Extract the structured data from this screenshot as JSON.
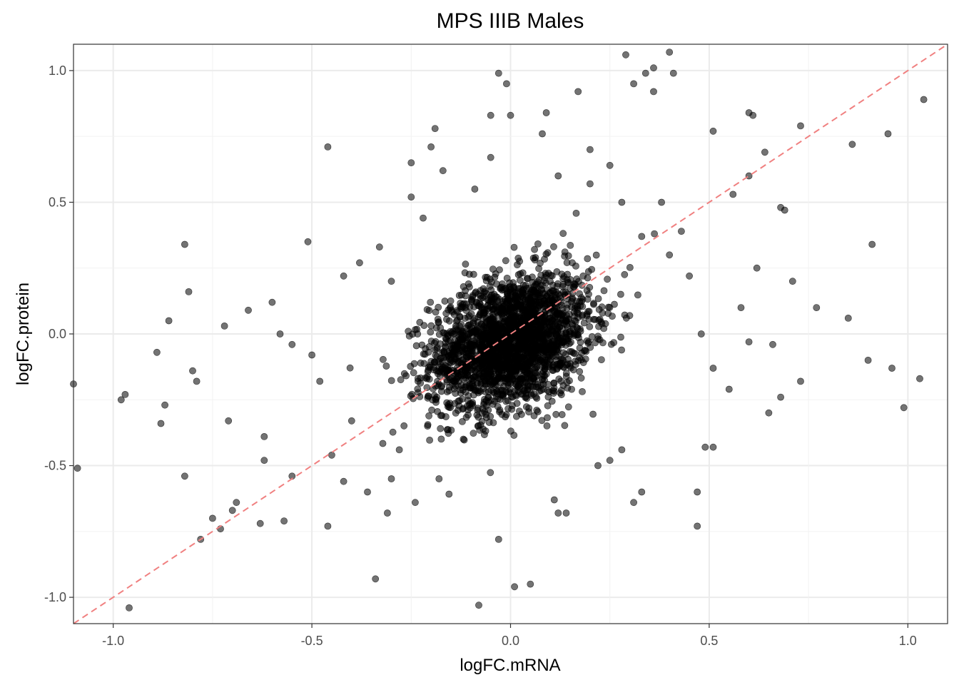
{
  "chart_data": {
    "type": "scatter",
    "title": "MPS IIIB Males",
    "xlabel": "logFC.mRNA",
    "ylabel": "logFC.protein",
    "xlim": [
      -1.1,
      1.1
    ],
    "ylim": [
      -1.1,
      1.1
    ],
    "xticks": [
      -1.0,
      -0.5,
      0.0,
      0.5,
      1.0
    ],
    "xtick_labels": [
      "-1.0",
      "-0.5",
      "0.0",
      "0.5",
      "1.0"
    ],
    "yticks": [
      -1.0,
      -0.5,
      0.0,
      0.5,
      1.0
    ],
    "ytick_labels": [
      "-1.0",
      "-0.5",
      "0.0",
      "0.5",
      "1.0"
    ],
    "grid": true,
    "legend": "none",
    "reference_line": {
      "slope": 1,
      "intercept": 0,
      "style": "dashed",
      "color": "#f08080"
    },
    "point_color": "#000000",
    "point_opacity": 0.55,
    "core_cluster": {
      "center": [
        0.0,
        -0.03
      ],
      "sd": [
        0.1,
        0.13
      ],
      "n": 2400,
      "seed": 12345
    },
    "outliers": [
      [
        0.29,
        1.06
      ],
      [
        0.4,
        1.07
      ],
      [
        0.36,
        1.01
      ],
      [
        0.41,
        0.99
      ],
      [
        0.34,
        0.99
      ],
      [
        -0.03,
        0.99
      ],
      [
        -0.01,
        0.95
      ],
      [
        0.31,
        0.95
      ],
      [
        0.36,
        0.92
      ],
      [
        0.17,
        0.92
      ],
      [
        1.04,
        0.89
      ],
      [
        0.09,
        0.84
      ],
      [
        0.6,
        0.84
      ],
      [
        0.61,
        0.83
      ],
      [
        -0.05,
        0.83
      ],
      [
        0.0,
        0.83
      ],
      [
        0.73,
        0.79
      ],
      [
        -0.19,
        0.78
      ],
      [
        0.51,
        0.77
      ],
      [
        0.08,
        0.76
      ],
      [
        0.95,
        0.76
      ],
      [
        0.86,
        0.72
      ],
      [
        -0.46,
        0.71
      ],
      [
        -0.2,
        0.71
      ],
      [
        0.2,
        0.7
      ],
      [
        0.64,
        0.69
      ],
      [
        -0.25,
        0.65
      ],
      [
        0.6,
        0.6
      ],
      [
        -0.17,
        0.62
      ],
      [
        0.56,
        0.53
      ],
      [
        -0.25,
        0.52
      ],
      [
        0.68,
        0.48
      ],
      [
        0.69,
        0.47
      ],
      [
        -0.22,
        0.44
      ],
      [
        -0.51,
        0.35
      ],
      [
        0.91,
        0.34
      ],
      [
        -0.82,
        0.34
      ],
      [
        -0.81,
        0.16
      ],
      [
        -0.89,
        -0.07
      ],
      [
        -0.86,
        0.05
      ],
      [
        -0.72,
        0.03
      ],
      [
        -0.66,
        0.09
      ],
      [
        -1.1,
        -0.19
      ],
      [
        -0.97,
        -0.23
      ],
      [
        -0.98,
        -0.25
      ],
      [
        -0.87,
        -0.27
      ],
      [
        -0.88,
        -0.34
      ],
      [
        -0.8,
        -0.14
      ],
      [
        -0.79,
        -0.18
      ],
      [
        -0.82,
        -0.54
      ],
      [
        -1.09,
        -0.51
      ],
      [
        -0.71,
        -0.33
      ],
      [
        -0.62,
        -0.39
      ],
      [
        -0.62,
        -0.48
      ],
      [
        -0.63,
        -0.72
      ],
      [
        -0.57,
        -0.71
      ],
      [
        -0.55,
        -0.54
      ],
      [
        -0.75,
        -0.7
      ],
      [
        -0.73,
        -0.74
      ],
      [
        -0.78,
        -0.78
      ],
      [
        -0.69,
        -0.64
      ],
      [
        -0.7,
        -0.67
      ],
      [
        -0.96,
        -1.04
      ],
      [
        -0.46,
        -0.73
      ],
      [
        -0.34,
        -0.93
      ],
      [
        -0.08,
        -1.03
      ],
      [
        0.01,
        -0.96
      ],
      [
        0.05,
        -0.95
      ],
      [
        -0.03,
        -0.78
      ],
      [
        0.11,
        -0.63
      ],
      [
        0.12,
        -0.68
      ],
      [
        0.14,
        -0.68
      ],
      [
        0.31,
        -0.64
      ],
      [
        0.33,
        -0.6
      ],
      [
        0.47,
        -0.6
      ],
      [
        0.47,
        -0.73
      ],
      [
        0.51,
        -0.43
      ],
      [
        0.65,
        -0.3
      ],
      [
        0.68,
        -0.24
      ],
      [
        0.73,
        -0.18
      ],
      [
        0.9,
        -0.1
      ],
      [
        0.96,
        -0.13
      ],
      [
        0.99,
        -0.28
      ],
      [
        1.03,
        -0.17
      ],
      [
        0.77,
        0.1
      ],
      [
        0.85,
        0.06
      ],
      [
        0.71,
        0.2
      ],
      [
        0.62,
        0.25
      ],
      [
        0.58,
        0.1
      ],
      [
        0.6,
        -0.03
      ],
      [
        0.66,
        -0.04
      ],
      [
        0.55,
        -0.21
      ],
      [
        0.49,
        -0.43
      ],
      [
        0.51,
        -0.13
      ],
      [
        0.48,
        0.0
      ],
      [
        -0.6,
        0.12
      ],
      [
        -0.58,
        0.0
      ],
      [
        -0.55,
        -0.04
      ],
      [
        -0.5,
        -0.08
      ],
      [
        -0.48,
        -0.18
      ],
      [
        -0.45,
        -0.46
      ],
      [
        -0.42,
        -0.56
      ],
      [
        -0.4,
        -0.33
      ],
      [
        -0.36,
        -0.6
      ],
      [
        -0.3,
        -0.55
      ],
      [
        -0.28,
        -0.44
      ],
      [
        -0.24,
        -0.64
      ],
      [
        -0.31,
        -0.68
      ],
      [
        -0.18,
        -0.55
      ],
      [
        0.22,
        -0.5
      ],
      [
        0.25,
        -0.48
      ],
      [
        0.28,
        -0.44
      ],
      [
        -0.42,
        0.22
      ],
      [
        -0.38,
        0.27
      ],
      [
        -0.33,
        0.33
      ],
      [
        -0.3,
        0.2
      ],
      [
        0.4,
        0.3
      ],
      [
        0.45,
        0.22
      ],
      [
        0.43,
        0.39
      ],
      [
        0.38,
        0.5
      ],
      [
        0.33,
        0.37
      ],
      [
        0.28,
        0.5
      ],
      [
        -0.05,
        0.67
      ],
      [
        -0.09,
        0.55
      ],
      [
        0.12,
        0.6
      ],
      [
        0.2,
        0.57
      ],
      [
        0.25,
        0.64
      ]
    ]
  }
}
